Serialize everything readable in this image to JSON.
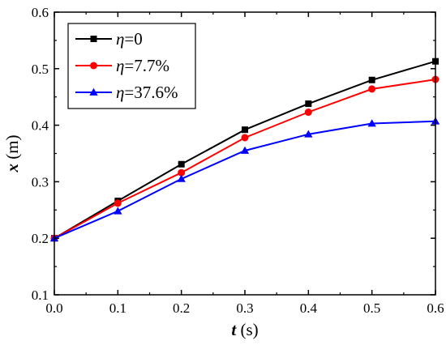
{
  "chart_data": {
    "type": "line",
    "x": [
      0.0,
      0.1,
      0.2,
      0.3,
      0.4,
      0.5,
      0.6
    ],
    "xlim": [
      0.0,
      0.6
    ],
    "ylim": [
      0.1,
      0.6
    ],
    "x_ticks": [
      "0.0",
      "0.1",
      "0.2",
      "0.3",
      "0.4",
      "0.5",
      "0.6"
    ],
    "y_ticks": [
      "0.1",
      "0.2",
      "0.3",
      "0.4",
      "0.5",
      "0.6"
    ],
    "xlabel": {
      "symbol": "t",
      "unit": " (s)"
    },
    "ylabel": {
      "symbol": "x",
      "unit": " (m)"
    },
    "grid": false,
    "legend_position": "top-left",
    "series": [
      {
        "name_symbol": "η",
        "name_value": "=0",
        "color": "#000000",
        "marker": "square",
        "values": [
          0.2,
          0.266,
          0.331,
          0.392,
          0.438,
          0.48,
          0.513
        ]
      },
      {
        "name_symbol": "η",
        "name_value": "=7.7%",
        "color": "#ff0000",
        "marker": "circle",
        "values": [
          0.2,
          0.262,
          0.316,
          0.378,
          0.423,
          0.464,
          0.481
        ]
      },
      {
        "name_symbol": "η",
        "name_value": "=37.6%",
        "color": "#0000ff",
        "marker": "triangle",
        "values": [
          0.2,
          0.248,
          0.305,
          0.355,
          0.384,
          0.403,
          0.407
        ]
      }
    ]
  }
}
